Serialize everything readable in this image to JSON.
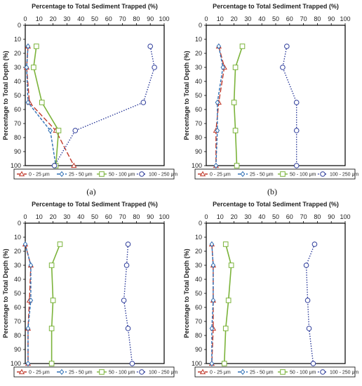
{
  "chart_data": [
    {
      "type": "line",
      "caption": "(a)",
      "xlabel": "Percentage to Total Sediment Trapped (%)",
      "ylabel": "Percentage to Total Depth (%)",
      "xlim": [
        0,
        100
      ],
      "ylim": [
        0,
        100
      ],
      "xticks": [
        0,
        10,
        20,
        30,
        40,
        50,
        60,
        70,
        80,
        90,
        100
      ],
      "yticks": [
        0,
        10,
        20,
        30,
        40,
        50,
        60,
        70,
        80,
        90,
        100
      ],
      "y_inverted": true,
      "x_axis_position": "top",
      "grid": false,
      "legend_position": "bottom",
      "depth": [
        15,
        30,
        55,
        75,
        100
      ],
      "series": [
        {
          "name": "0 - 25 μm",
          "x": [
            2,
            1,
            3,
            22,
            35
          ]
        },
        {
          "name": "25 - 50 μm",
          "x": [
            2,
            1,
            2,
            18,
            22
          ]
        },
        {
          "name": "50 - 100 μm",
          "x": [
            8,
            6,
            12,
            24,
            22
          ]
        },
        {
          "name": "100 - 250 μm",
          "x": [
            90,
            93,
            85,
            36,
            21
          ]
        }
      ]
    },
    {
      "type": "line",
      "caption": "(b)",
      "xlabel": "Percentage to Total Sediment Trapped (%)",
      "ylabel": "Percentage to Total Depth (%)",
      "xlim": [
        0,
        100
      ],
      "ylim": [
        0,
        100
      ],
      "xticks": [
        0,
        10,
        20,
        30,
        40,
        50,
        60,
        70,
        80,
        90,
        100
      ],
      "yticks": [
        0,
        10,
        20,
        30,
        40,
        50,
        60,
        70,
        80,
        90,
        100
      ],
      "y_inverted": true,
      "x_axis_position": "top",
      "grid": false,
      "legend_position": "bottom",
      "depth": [
        15,
        30,
        55,
        75,
        100
      ],
      "series": [
        {
          "name": "0 - 25 μm",
          "x": [
            9,
            13,
            9,
            7,
            7
          ]
        },
        {
          "name": "25 - 50 μm",
          "x": [
            9,
            12,
            8,
            8,
            7
          ]
        },
        {
          "name": "50 - 100 μm",
          "x": [
            26,
            21,
            20,
            21,
            22
          ]
        },
        {
          "name": "100 - 250 μm",
          "x": [
            58,
            55,
            65,
            65,
            65
          ]
        }
      ]
    },
    {
      "type": "line",
      "caption": "(c)",
      "xlabel": "Percentage to Total Sediment Trapped (%)",
      "ylabel": "Percentage to Total Depth (%)",
      "xlim": [
        0,
        100
      ],
      "ylim": [
        0,
        100
      ],
      "xticks": [
        0,
        10,
        20,
        30,
        40,
        50,
        60,
        70,
        80,
        90,
        100
      ],
      "yticks": [
        0,
        10,
        20,
        30,
        40,
        50,
        60,
        70,
        80,
        90,
        100
      ],
      "y_inverted": true,
      "x_axis_position": "top",
      "grid": false,
      "legend_position": "bottom",
      "depth": [
        15,
        30,
        55,
        75,
        100
      ],
      "series": [
        {
          "name": "0 - 25 μm",
          "x": [
            0,
            4,
            3,
            2,
            2
          ]
        },
        {
          "name": "25 - 50 μm",
          "x": [
            0,
            4,
            4,
            2,
            2
          ]
        },
        {
          "name": "50 - 100 μm",
          "x": [
            25,
            19,
            20,
            19,
            19
          ]
        },
        {
          "name": "100 - 250 μm",
          "x": [
            74,
            73,
            71,
            74,
            77
          ]
        }
      ]
    },
    {
      "type": "line",
      "caption": "(d)",
      "xlabel": "Percentage to Total Sediment Trapped (%)",
      "ylabel": "Percentage to Total Depth (%)",
      "xlim": [
        0,
        100
      ],
      "ylim": [
        0,
        100
      ],
      "xticks": [
        0,
        10,
        20,
        30,
        40,
        50,
        60,
        70,
        80,
        90,
        100
      ],
      "yticks": [
        0,
        10,
        20,
        30,
        40,
        50,
        60,
        70,
        80,
        90,
        100
      ],
      "y_inverted": true,
      "x_axis_position": "top",
      "grid": false,
      "legend_position": "bottom",
      "depth": [
        15,
        30,
        55,
        75,
        100
      ],
      "series": [
        {
          "name": "0 - 25 μm",
          "x": [
            4,
            5,
            5,
            5,
            4
          ]
        },
        {
          "name": "25 - 50 μm",
          "x": [
            4,
            5,
            5,
            4,
            4
          ]
        },
        {
          "name": "50 - 100 μm",
          "x": [
            14,
            18,
            16,
            14,
            13
          ]
        },
        {
          "name": "100 - 250 μm",
          "x": [
            78,
            72,
            73,
            74,
            77
          ]
        }
      ]
    }
  ],
  "series_styles": [
    {
      "color": "#c0392b",
      "marker": "triangle",
      "dash": "7,3"
    },
    {
      "color": "#2e6fb5",
      "marker": "diamond",
      "dash": "4,2"
    },
    {
      "color": "#7bb33a",
      "marker": "square",
      "dash": ""
    },
    {
      "color": "#2b3a99",
      "marker": "circle",
      "dash": "1.5,2"
    }
  ]
}
